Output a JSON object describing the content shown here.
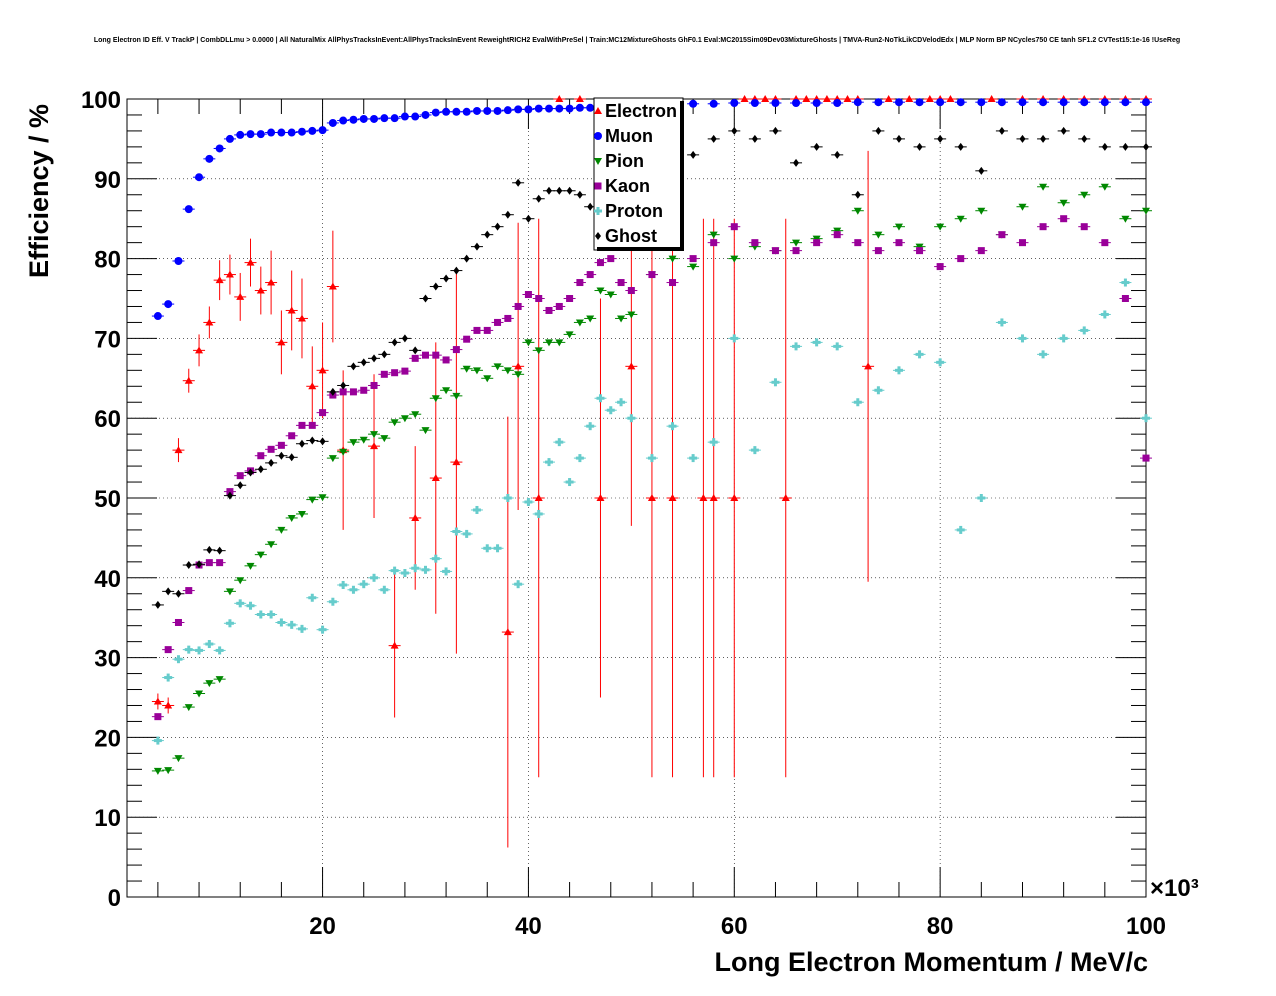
{
  "chart_data": {
    "type": "scatter",
    "title": "Long Electron ID Eff. V TrackP | CombDLLmu > 0.0000 | All NaturalMix AllPhysTracksInEvent:AllPhysTracksInEvent ReweightRICH2 EvalWithPreSel | Train:MC12MixtureGhosts GhF0.1 Eval:MC2015Sim09Dev03MixtureGhosts | TMVA-Run2-NoTkLikCDVelodEdx | MLP Norm BP NCycles750 CE tanh SF1.2 CVTest15:1e-16 !UseReg",
    "xlabel": "Long Electron Momentum / MeV/c",
    "ylabel": "Efficiency / %",
    "x_multiplier": "×10³",
    "xlim": [
      1,
      100
    ],
    "ylim": [
      0,
      100
    ],
    "xticks": [
      "20",
      "40",
      "60",
      "80",
      "100"
    ],
    "yticks": [
      "0",
      "10",
      "20",
      "30",
      "40",
      "50",
      "60",
      "70",
      "80",
      "90",
      "100"
    ],
    "grid": true,
    "legend_position": "top-center",
    "series": [
      {
        "name": "Electron",
        "color": "#ff0000",
        "marker": "triangle",
        "x": [
          4,
          5,
          6,
          7,
          8,
          9,
          10,
          11,
          12,
          13,
          14,
          15,
          16,
          17,
          18,
          19,
          20,
          21,
          22,
          25,
          27,
          29,
          31,
          33,
          38,
          39,
          41,
          43,
          45,
          47,
          50,
          52,
          54,
          57,
          58,
          60,
          61,
          62,
          63,
          64,
          65,
          66,
          67,
          68,
          69,
          70,
          71,
          72,
          73,
          75,
          77,
          79,
          80,
          81,
          85,
          88,
          90,
          92,
          94,
          96,
          98,
          100
        ],
        "y": [
          24.5,
          24,
          56,
          64.7,
          68.5,
          72,
          77.3,
          78,
          75.2,
          79.5,
          76,
          77,
          69.5,
          73.5,
          72.5,
          64,
          66,
          76.5,
          56,
          56.5,
          31.5,
          47.5,
          52.5,
          54.5,
          33.2,
          66.5,
          50,
          100,
          100,
          50,
          66.5,
          50,
          50,
          50,
          50,
          50,
          100,
          100,
          100,
          100,
          50,
          100,
          100,
          100,
          100,
          100,
          100,
          100,
          66.5,
          100,
          100,
          100,
          100,
          100,
          100,
          100,
          100,
          100,
          100,
          100,
          100,
          100
        ],
        "err": [
          1,
          1,
          1.5,
          1.5,
          2,
          2,
          2.5,
          2.5,
          3,
          3,
          3,
          4,
          4,
          5,
          5,
          5,
          6,
          7,
          10,
          9,
          9,
          9,
          17,
          24,
          27,
          18,
          35,
          0,
          0,
          25,
          20,
          35,
          35,
          35,
          35,
          35,
          0,
          0,
          0,
          0,
          35,
          0,
          0,
          0,
          0,
          0,
          0,
          0,
          27,
          0,
          0,
          0,
          0,
          0,
          0,
          0,
          0,
          0,
          0,
          0,
          0,
          0
        ]
      },
      {
        "name": "Muon",
        "color": "#0000ff",
        "marker": "circle",
        "x": [
          4,
          5,
          6,
          7,
          8,
          9,
          10,
          11,
          12,
          13,
          14,
          15,
          16,
          17,
          18,
          19,
          20,
          21,
          22,
          23,
          24,
          25,
          26,
          27,
          28,
          29,
          30,
          31,
          32,
          33,
          34,
          35,
          36,
          37,
          38,
          39,
          40,
          41,
          42,
          43,
          44,
          45,
          46,
          47,
          48,
          49,
          50,
          52,
          54,
          56,
          58,
          60,
          62,
          64,
          66,
          68,
          70,
          72,
          74,
          76,
          78,
          80,
          82,
          84,
          86,
          88,
          90,
          92,
          94,
          96,
          98,
          100
        ],
        "y": [
          72.8,
          74.3,
          79.7,
          86.2,
          90.2,
          92.5,
          93.8,
          95,
          95.5,
          95.6,
          95.6,
          95.8,
          95.8,
          95.8,
          95.9,
          96,
          96.1,
          97,
          97.3,
          97.4,
          97.5,
          97.5,
          97.6,
          97.6,
          97.8,
          97.8,
          98,
          98.3,
          98.4,
          98.4,
          98.4,
          98.5,
          98.5,
          98.5,
          98.6,
          98.7,
          98.7,
          98.8,
          98.8,
          98.8,
          98.8,
          98.9,
          98.9,
          99,
          99.1,
          99.1,
          99.2,
          99.3,
          99.3,
          99.4,
          99.4,
          99.5,
          99.5,
          99.5,
          99.5,
          99.5,
          99.5,
          99.6,
          99.6,
          99.6,
          99.6,
          99.6,
          99.6,
          99.6,
          99.6,
          99.6,
          99.6,
          99.6,
          99.6,
          99.6,
          99.6,
          99.6
        ]
      },
      {
        "name": "Pion",
        "color": "#008800",
        "marker": "triangle-down",
        "x": [
          4,
          5,
          6,
          7,
          8,
          9,
          10,
          11,
          12,
          13,
          14,
          15,
          16,
          17,
          18,
          19,
          20,
          21,
          22,
          23,
          24,
          25,
          26,
          27,
          28,
          29,
          30,
          31,
          32,
          33,
          34,
          35,
          36,
          37,
          38,
          39,
          40,
          41,
          42,
          43,
          44,
          45,
          46,
          47,
          48,
          49,
          50,
          52,
          54,
          56,
          58,
          60,
          62,
          64,
          66,
          68,
          70,
          72,
          74,
          76,
          78,
          80,
          82,
          84,
          86,
          88,
          90,
          92,
          94,
          96,
          98,
          100
        ],
        "y": [
          15.8,
          15.9,
          17.4,
          23.8,
          25.5,
          26.8,
          27.3,
          38.3,
          39.7,
          41.5,
          42.9,
          44.2,
          46,
          47.5,
          48,
          49.8,
          50.1,
          55,
          55.8,
          57,
          57.3,
          58,
          57.5,
          59.5,
          60,
          60.5,
          58.5,
          62.5,
          63.5,
          62.8,
          66.2,
          66,
          65,
          66.5,
          66,
          65.5,
          69.5,
          68.5,
          69.5,
          69.5,
          70.5,
          72,
          72.5,
          76,
          75.5,
          72.5,
          73,
          78,
          80,
          79,
          83,
          80,
          81.5,
          81,
          82,
          82.5,
          83.5,
          86,
          83,
          84,
          81.5,
          84,
          85,
          86,
          83,
          86.5,
          89,
          87,
          88,
          89,
          85,
          86
        ]
      },
      {
        "name": "Kaon",
        "color": "#990099",
        "marker": "square",
        "x": [
          4,
          5,
          6,
          7,
          8,
          9,
          10,
          11,
          12,
          13,
          14,
          15,
          16,
          17,
          18,
          19,
          20,
          21,
          22,
          23,
          24,
          25,
          26,
          27,
          28,
          29,
          30,
          31,
          32,
          33,
          34,
          35,
          36,
          37,
          38,
          39,
          40,
          41,
          42,
          43,
          44,
          45,
          46,
          47,
          48,
          49,
          50,
          52,
          54,
          56,
          58,
          60,
          62,
          64,
          66,
          68,
          70,
          72,
          74,
          76,
          78,
          80,
          82,
          84,
          86,
          88,
          90,
          92,
          94,
          96,
          98,
          100
        ],
        "y": [
          22.6,
          31,
          34.4,
          38.4,
          41.6,
          41.9,
          41.9,
          50.8,
          52.8,
          53.4,
          55.3,
          56.1,
          56.6,
          57.8,
          59.1,
          59.1,
          60.7,
          62.9,
          63.3,
          63.3,
          63.5,
          64.1,
          65.5,
          65.7,
          65.9,
          67.5,
          67.9,
          67.9,
          67.3,
          68.6,
          69.9,
          71,
          71,
          72,
          72.5,
          74,
          75.5,
          75,
          73.5,
          74,
          75,
          77,
          78,
          79.5,
          80,
          77,
          76,
          78,
          77,
          80,
          82,
          84,
          82,
          81,
          81,
          82,
          83,
          82,
          81,
          82,
          81,
          79,
          80,
          81,
          83,
          82,
          84,
          85,
          84,
          82,
          75,
          55
        ]
      },
      {
        "name": "Proton",
        "color": "#66cccc",
        "marker": "cross",
        "x": [
          4,
          5,
          6,
          7,
          8,
          9,
          10,
          11,
          12,
          13,
          14,
          15,
          16,
          17,
          18,
          19,
          20,
          21,
          22,
          23,
          24,
          25,
          26,
          27,
          28,
          29,
          30,
          31,
          32,
          33,
          34,
          35,
          36,
          37,
          38,
          39,
          40,
          41,
          42,
          43,
          44,
          45,
          46,
          47,
          48,
          49,
          50,
          52,
          54,
          56,
          58,
          60,
          62,
          64,
          66,
          68,
          70,
          72,
          74,
          76,
          78,
          80,
          82,
          84,
          86,
          88,
          90,
          92,
          94,
          96,
          98,
          100
        ],
        "y": [
          19.6,
          27.5,
          29.8,
          31,
          30.9,
          31.7,
          30.9,
          34.3,
          36.8,
          36.5,
          35.4,
          35.4,
          34.4,
          34.1,
          33.6,
          37.5,
          33.5,
          37,
          39.1,
          38.5,
          39.2,
          40,
          38.5,
          40.9,
          40.6,
          41.2,
          41,
          42.4,
          40.8,
          45.8,
          45.5,
          48.5,
          43.7,
          43.7,
          50,
          39.2,
          49.5,
          48,
          54.5,
          57,
          52,
          55,
          59,
          62.5,
          61,
          62,
          60,
          55,
          59,
          55,
          57,
          70,
          56,
          64.5,
          69,
          69.5,
          69,
          62,
          63.5,
          66,
          68,
          67,
          46,
          50,
          72,
          70,
          68,
          70,
          71,
          73,
          77,
          60
        ]
      },
      {
        "name": "Ghost",
        "color": "#000000",
        "marker": "diamond",
        "x": [
          4,
          5,
          6,
          7,
          8,
          9,
          10,
          11,
          12,
          13,
          14,
          15,
          16,
          17,
          18,
          19,
          20,
          21,
          22,
          23,
          24,
          25,
          26,
          27,
          28,
          29,
          30,
          31,
          32,
          33,
          34,
          35,
          36,
          37,
          38,
          39,
          40,
          41,
          42,
          43,
          44,
          45,
          46,
          47,
          48,
          49,
          50,
          52,
          54,
          56,
          58,
          60,
          62,
          64,
          66,
          68,
          70,
          72,
          74,
          76,
          78,
          80,
          82,
          84,
          86,
          88,
          90,
          92,
          94,
          96,
          98,
          100
        ],
        "y": [
          36.6,
          38.3,
          38,
          41.6,
          41.7,
          43.5,
          43.4,
          50.3,
          51.6,
          53.2,
          53.6,
          54.4,
          55.3,
          55.1,
          56.8,
          57.2,
          57.1,
          63.3,
          64.1,
          66.5,
          67,
          67.5,
          68,
          69.5,
          70,
          68.5,
          75,
          76.5,
          77.5,
          78.5,
          80,
          81.5,
          83,
          84,
          85.5,
          89.5,
          85,
          87.5,
          88.5,
          88.5,
          88.5,
          88,
          86.5,
          89,
          88,
          85,
          92,
          95,
          94,
          93,
          95,
          96,
          95,
          96,
          92,
          94,
          93,
          88,
          96,
          95,
          94,
          95,
          94,
          91,
          96,
          95,
          95,
          96,
          95,
          94,
          94,
          94
        ]
      }
    ]
  }
}
